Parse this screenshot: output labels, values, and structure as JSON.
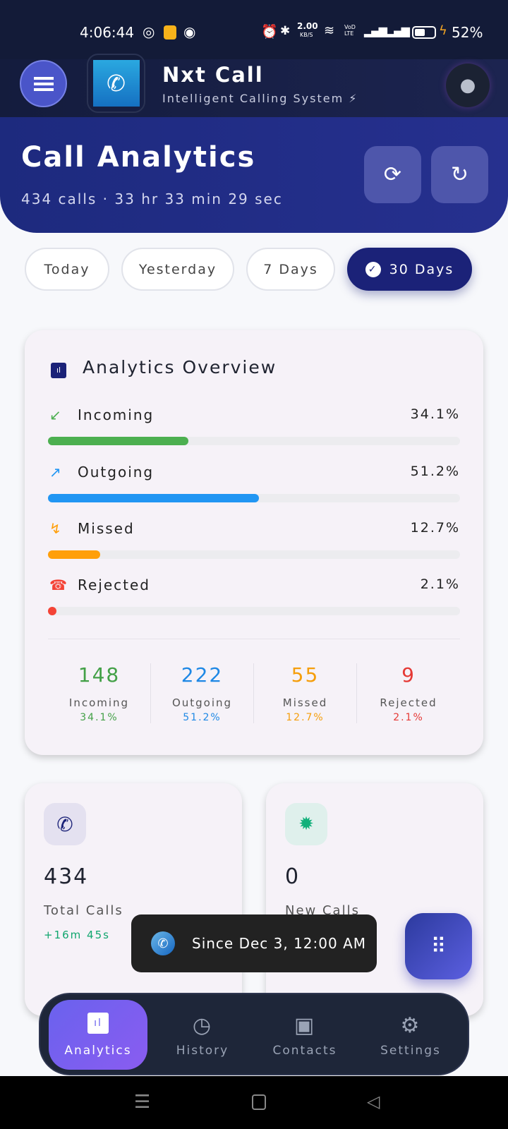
{
  "status_bar": {
    "time": "4:06:44",
    "net_speed": "2.00",
    "net_unit": "KB/S",
    "volte": "VoD LTE",
    "battery": "52%"
  },
  "app": {
    "title": "Nxt Call",
    "subtitle": "Intelligent Calling System ⚡"
  },
  "hero": {
    "title": "Call Analytics",
    "summary": "434 calls · 33 hr 33 min 29 sec"
  },
  "filters": [
    {
      "label": "Today"
    },
    {
      "label": "Yesterday"
    },
    {
      "label": "7 Days"
    },
    {
      "label": "30 Days",
      "active": true
    }
  ],
  "overview": {
    "title": "Analytics Overview",
    "rows": [
      {
        "label": "Incoming",
        "percent": "34.1%",
        "value": 34.1,
        "color": "#4caf50",
        "icon": "↙"
      },
      {
        "label": "Outgoing",
        "percent": "51.2%",
        "value": 51.2,
        "color": "#2196f3",
        "icon": "↗"
      },
      {
        "label": "Missed",
        "percent": "12.7%",
        "value": 12.7,
        "color": "#ff9f0a",
        "icon": "↯"
      },
      {
        "label": "Rejected",
        "percent": "2.1%",
        "value": 2.1,
        "color": "#f44336",
        "icon": "☎"
      }
    ],
    "stats": [
      {
        "count": "148",
        "label": "Incoming",
        "percent": "34.1%",
        "color": "#43a047"
      },
      {
        "count": "222",
        "label": "Outgoing",
        "percent": "51.2%",
        "color": "#1e88e5"
      },
      {
        "count": "55",
        "label": "Missed",
        "percent": "12.7%",
        "color": "#f59e0b"
      },
      {
        "count": "9",
        "label": "Rejected",
        "percent": "2.1%",
        "color": "#e53935"
      }
    ]
  },
  "total_card": {
    "value": "434",
    "label": "Total Calls",
    "delta": "+16m 45s"
  },
  "new_card": {
    "value": "0",
    "label": "New Calls"
  },
  "toast": {
    "text": "Since Dec 3, 12:00 AM"
  },
  "bottom_nav": [
    {
      "label": "Analytics",
      "active": true
    },
    {
      "label": "History"
    },
    {
      "label": "Contacts"
    },
    {
      "label": "Settings"
    }
  ]
}
